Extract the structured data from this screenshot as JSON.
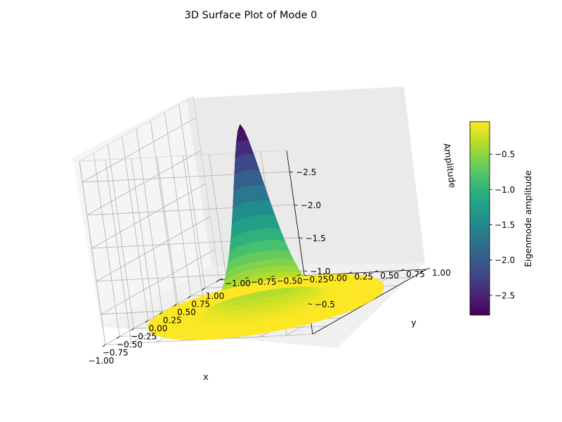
{
  "chart_data": {
    "type": "surface3d",
    "title": "3D Surface Plot of Mode 0",
    "xlabel": "x",
    "ylabel": "y",
    "zlabel": "Amplitude",
    "x_ticks": [
      "1.00",
      "0.75",
      "0.50",
      "0.25",
      "0.00",
      "−0.25",
      "−0.50",
      "−0.75",
      "−1.00"
    ],
    "y_ticks": [
      "−1.00",
      "−0.75",
      "−0.50",
      "−0.25",
      "0.00",
      "0.25",
      "0.50",
      "0.75",
      "1.00"
    ],
    "z_ticks": [
      "−0.5",
      "−1.0",
      "−1.5",
      "−2.0",
      "−2.5"
    ],
    "z_values": [
      -0.5,
      -1.0,
      -1.5,
      -2.0,
      -2.5
    ],
    "xlim": [
      -1.0,
      1.0
    ],
    "ylim": [
      -1.0,
      1.0
    ],
    "zlim": [
      -0.04,
      -2.82
    ],
    "surface": {
      "domain": "unit disk",
      "peak_value": -2.8,
      "peak_x": 0.0,
      "peak_y": 0.0,
      "edge_value": -0.04
    },
    "colormap": "viridis",
    "colorbar": {
      "label": "Eigenmode amplitude",
      "ticks": [
        "−0.5",
        "−1.0",
        "−1.5",
        "−2.0",
        "−2.5"
      ],
      "values": [
        -0.5,
        -1.0,
        -1.5,
        -2.0,
        -2.5
      ],
      "range": [
        -2.78,
        -0.04
      ]
    },
    "grid": true
  }
}
